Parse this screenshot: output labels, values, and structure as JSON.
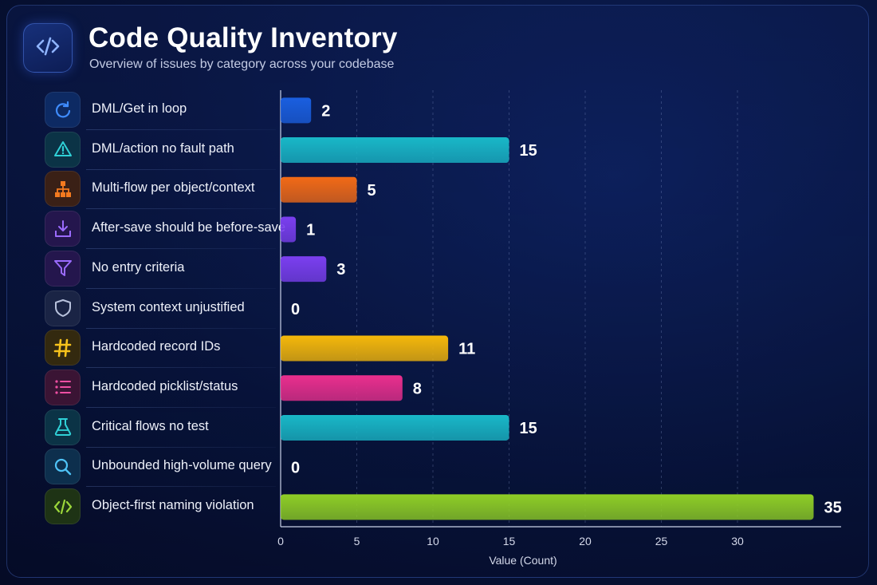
{
  "header": {
    "title": "Code Quality Inventory",
    "subtitle": "Overview of issues by category across your codebase",
    "logo_icon": "code-brackets-icon"
  },
  "chart_data": {
    "type": "bar",
    "orientation": "horizontal",
    "categories": [
      "DML/Get in loop",
      "DML/action no fault path",
      "Multi-flow per object/context",
      "After-save should be before-save",
      "No entry criteria",
      "System context unjustified",
      "Hardcoded record IDs",
      "Hardcoded picklist/status",
      "Critical flows no test",
      "Unbounded high-volume query",
      "Object-first naming violation"
    ],
    "values": [
      2,
      15,
      5,
      1,
      3,
      0,
      11,
      8,
      15,
      0,
      35
    ],
    "data_labels": [
      "2",
      "15",
      "5",
      "1",
      "3",
      "0",
      "11",
      "8",
      "15",
      "0",
      "35"
    ],
    "colors": [
      "#1a5fe0",
      "#19b8c8",
      "#f26a16",
      "#7b3ff0",
      "#7b3ff0",
      "#6b7696",
      "#f5b80a",
      "#ea2f8e",
      "#19b8c8",
      "#3fb6e6",
      "#8fce26"
    ],
    "icons": [
      "refresh-icon",
      "warning-icon",
      "hierarchy-icon",
      "download-icon",
      "filter-icon",
      "shield-icon",
      "hash-icon",
      "list-icon",
      "flask-icon",
      "search-icon",
      "code-icon"
    ],
    "xlabel": "Value (Count)",
    "ylabel": "",
    "xlim": [
      0,
      36
    ],
    "ticks": [
      0,
      5,
      10,
      15,
      20,
      25,
      30
    ],
    "tick_labels": [
      "0",
      "5",
      "10",
      "15",
      "20",
      "25",
      "30"
    ],
    "grid": true
  }
}
